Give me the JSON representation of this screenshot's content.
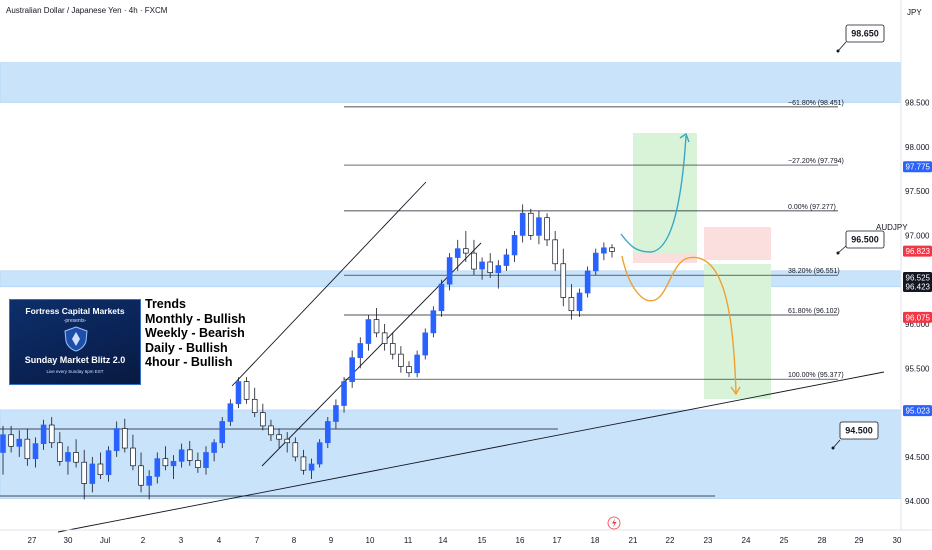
{
  "symbol": {
    "title": "Australian Dollar / Japanese Yen · 4h · FXCM",
    "short": "AUDJPY",
    "currency": "JPY"
  },
  "colors": {
    "bull": "#2962ff",
    "bear": "#ffffff",
    "zone": "#c9e3fb",
    "zone_border": "#a9d0f5",
    "profit": "#d8f3d8",
    "loss": "#fbdede",
    "tag_blue": "#2962ff",
    "tag_red": "#f23645",
    "arrow_teal": "#3aa7c7",
    "arrow_orange": "#f0a030",
    "line": "#131722"
  },
  "price_axis": {
    "labels": [
      "98.500",
      "98.000",
      "97.500",
      "97.000",
      "96.500",
      "96.000",
      "95.500",
      "95.000",
      "94.500",
      "94.000"
    ],
    "tags": [
      {
        "text": "97.775",
        "color": "#2962ff"
      },
      {
        "text": "96.823",
        "color": "#f23645"
      },
      {
        "text": "96.525",
        "color": "#131722"
      },
      {
        "text": "96.423",
        "color": "#131722"
      },
      {
        "text": "96.075",
        "color": "#f23645"
      },
      {
        "text": "95.023",
        "color": "#2962ff"
      }
    ]
  },
  "time_axis": {
    "labels": [
      "27",
      "30",
      "Jul",
      "2",
      "3",
      "4",
      "7",
      "8",
      "9",
      "10",
      "11",
      "14",
      "15",
      "16",
      "17",
      "18",
      "21",
      "22",
      "23",
      "24",
      "25",
      "28",
      "29",
      "30"
    ]
  },
  "fib_labels": [
    "−61.80% (98.451)",
    "−27.20% (97.794)",
    "0.00% (97.277)",
    "38.20% (96.551)",
    "61.80% (96.102)",
    "100.00% (95.377)"
  ],
  "callouts": [
    "98.650",
    "96.500",
    "94.500"
  ],
  "banner": {
    "title": "Fortress Capital Markets",
    "presents": "-presents-",
    "show": "Sunday Market Blitz 2.0",
    "schedule": "Live every Sunday 6pm EST"
  },
  "trends": [
    "Trends",
    "Monthly - Bullish",
    "Weekly - Bearish",
    "Daily - Bullish",
    "4hour - Bullish"
  ],
  "chart_data": {
    "type": "candlestick",
    "symbol": "AUDJPY",
    "timeframe": "4h",
    "price_range": [
      93.85,
      98.95
    ],
    "zones": [
      {
        "label": "98.650",
        "low": 98.5,
        "high": 98.95
      },
      {
        "label": "96.500",
        "low": 96.42,
        "high": 96.6
      },
      {
        "label": "94.500",
        "low": 94.03,
        "high": 95.03
      }
    ],
    "fibonacci": [
      {
        "level": "-61.80%",
        "price": 98.451
      },
      {
        "level": "-27.20%",
        "price": 97.794
      },
      {
        "level": "0.00%",
        "price": 97.277
      },
      {
        "level": "38.20%",
        "price": 96.551
      },
      {
        "level": "61.80%",
        "price": 96.102
      },
      {
        "level": "100.00%",
        "price": 95.377
      }
    ],
    "long_setup": {
      "entry": 96.525,
      "target": 97.775,
      "stop": 96.423
    },
    "short_setup": {
      "entry": 96.423,
      "target": 95.023,
      "stop": 96.823
    },
    "candles": [
      [
        94.55,
        94.85,
        94.3,
        94.75
      ],
      [
        94.75,
        94.85,
        94.55,
        94.62
      ],
      [
        94.62,
        94.8,
        94.5,
        94.7
      ],
      [
        94.7,
        94.82,
        94.4,
        94.48
      ],
      [
        94.48,
        94.72,
        94.38,
        94.65
      ],
      [
        94.65,
        94.92,
        94.58,
        94.86
      ],
      [
        94.86,
        94.95,
        94.6,
        94.66
      ],
      [
        94.66,
        94.78,
        94.4,
        94.45
      ],
      [
        94.45,
        94.62,
        94.3,
        94.55
      ],
      [
        94.55,
        94.7,
        94.38,
        94.44
      ],
      [
        94.44,
        94.58,
        94.02,
        94.2
      ],
      [
        94.2,
        94.5,
        94.1,
        94.42
      ],
      [
        94.42,
        94.55,
        94.25,
        94.3
      ],
      [
        94.3,
        94.62,
        94.22,
        94.57
      ],
      [
        94.57,
        94.9,
        94.5,
        94.82
      ],
      [
        94.82,
        94.93,
        94.55,
        94.6
      ],
      [
        94.6,
        94.75,
        94.35,
        94.4
      ],
      [
        94.4,
        94.55,
        94.1,
        94.18
      ],
      [
        94.18,
        94.35,
        94.02,
        94.28
      ],
      [
        94.28,
        94.55,
        94.2,
        94.48
      ],
      [
        94.48,
        94.62,
        94.35,
        94.4
      ],
      [
        94.4,
        94.52,
        94.25,
        94.45
      ],
      [
        94.45,
        94.65,
        94.38,
        94.58
      ],
      [
        94.58,
        94.68,
        94.4,
        94.46
      ],
      [
        94.46,
        94.55,
        94.32,
        94.38
      ],
      [
        94.38,
        94.62,
        94.3,
        94.55
      ],
      [
        94.55,
        94.7,
        94.45,
        94.66
      ],
      [
        94.66,
        94.95,
        94.6,
        94.9
      ],
      [
        94.9,
        95.15,
        94.85,
        95.1
      ],
      [
        95.1,
        95.4,
        95.05,
        95.35
      ],
      [
        95.35,
        95.4,
        95.1,
        95.15
      ],
      [
        95.15,
        95.28,
        94.95,
        95.0
      ],
      [
        95.0,
        95.1,
        94.8,
        94.85
      ],
      [
        94.85,
        94.92,
        94.68,
        94.75
      ],
      [
        94.75,
        94.82,
        94.6,
        94.7
      ],
      [
        94.7,
        94.78,
        94.55,
        94.66
      ],
      [
        94.66,
        94.72,
        94.45,
        94.5
      ],
      [
        94.5,
        94.58,
        94.3,
        94.35
      ],
      [
        94.35,
        94.48,
        94.25,
        94.42
      ],
      [
        94.42,
        94.7,
        94.38,
        94.66
      ],
      [
        94.66,
        94.95,
        94.6,
        94.9
      ],
      [
        94.9,
        95.15,
        94.82,
        95.08
      ],
      [
        95.08,
        95.4,
        95.0,
        95.35
      ],
      [
        95.35,
        95.7,
        95.28,
        95.62
      ],
      [
        95.62,
        95.85,
        95.5,
        95.78
      ],
      [
        95.78,
        96.1,
        95.7,
        96.05
      ],
      [
        96.05,
        96.18,
        95.85,
        95.9
      ],
      [
        95.9,
        96.0,
        95.7,
        95.78
      ],
      [
        95.78,
        95.9,
        95.6,
        95.66
      ],
      [
        95.66,
        95.75,
        95.45,
        95.52
      ],
      [
        95.52,
        95.58,
        95.4,
        95.45
      ],
      [
        95.45,
        95.7,
        95.4,
        95.65
      ],
      [
        95.65,
        95.95,
        95.6,
        95.9
      ],
      [
        95.9,
        96.2,
        95.85,
        96.15
      ],
      [
        96.15,
        96.5,
        96.08,
        96.45
      ],
      [
        96.45,
        96.8,
        96.38,
        96.75
      ],
      [
        96.75,
        96.95,
        96.6,
        96.85
      ],
      [
        96.85,
        97.05,
        96.7,
        96.8
      ],
      [
        96.8,
        96.95,
        96.55,
        96.62
      ],
      [
        96.62,
        96.75,
        96.5,
        96.7
      ],
      [
        96.7,
        96.8,
        96.52,
        96.58
      ],
      [
        96.58,
        96.72,
        96.4,
        96.66
      ],
      [
        96.66,
        96.85,
        96.6,
        96.78
      ],
      [
        96.78,
        97.05,
        96.7,
        97.0
      ],
      [
        97.0,
        97.35,
        96.92,
        97.25
      ],
      [
        97.25,
        97.3,
        96.95,
        97.0
      ],
      [
        97.0,
        97.28,
        96.9,
        97.2
      ],
      [
        97.2,
        97.25,
        96.88,
        96.95
      ],
      [
        96.95,
        97.05,
        96.6,
        96.68
      ],
      [
        96.68,
        96.85,
        96.2,
        96.3
      ],
      [
        96.3,
        96.45,
        96.05,
        96.15
      ],
      [
        96.15,
        96.4,
        96.08,
        96.35
      ],
      [
        96.35,
        96.65,
        96.3,
        96.6
      ],
      [
        96.6,
        96.85,
        96.55,
        96.8
      ],
      [
        96.8,
        96.92,
        96.72,
        96.86
      ],
      [
        96.86,
        96.9,
        96.75,
        96.82
      ]
    ]
  }
}
